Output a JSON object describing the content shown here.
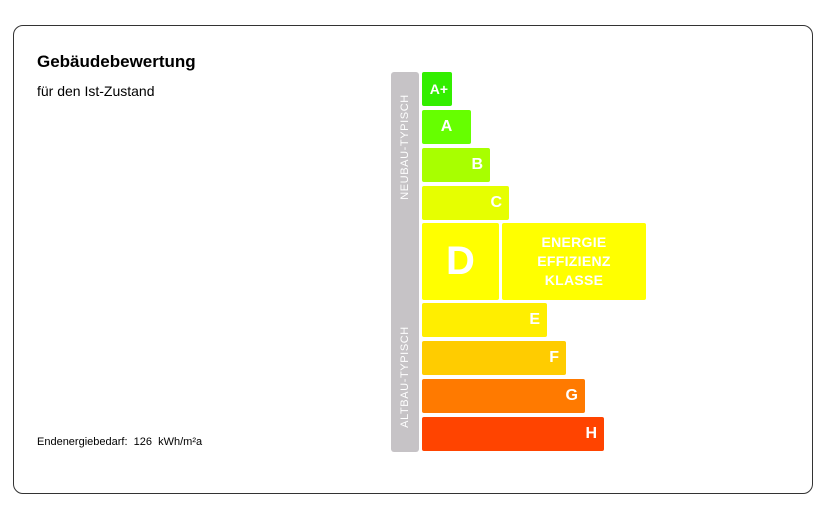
{
  "header": {
    "title": "Gebäudebewertung",
    "subtitle": "für den Ist-Zustand"
  },
  "footer": {
    "label": "Endenergiebedarf:",
    "value": "126",
    "unit": "kWh/m²a"
  },
  "side_labels": {
    "top": "NEUBAU-TYPISCH",
    "bottom": "ALTBAU-TYPISCH"
  },
  "classes": [
    {
      "label": "A+",
      "color": "#33ee00"
    },
    {
      "label": "A",
      "color": "#66ff00"
    },
    {
      "label": "B",
      "color": "#a8ff00"
    },
    {
      "label": "C",
      "color": "#e6ff00"
    },
    {
      "label": "D",
      "color": "#ffff00",
      "current": true
    },
    {
      "label": "E",
      "color": "#ffee00"
    },
    {
      "label": "F",
      "color": "#ffcc00"
    },
    {
      "label": "G",
      "color": "#ff7a00"
    },
    {
      "label": "H",
      "color": "#ff4400"
    }
  ],
  "current_box": {
    "line1": "ENERGIE",
    "line2": "EFFIZIENZ",
    "line3": "KLASSE"
  }
}
